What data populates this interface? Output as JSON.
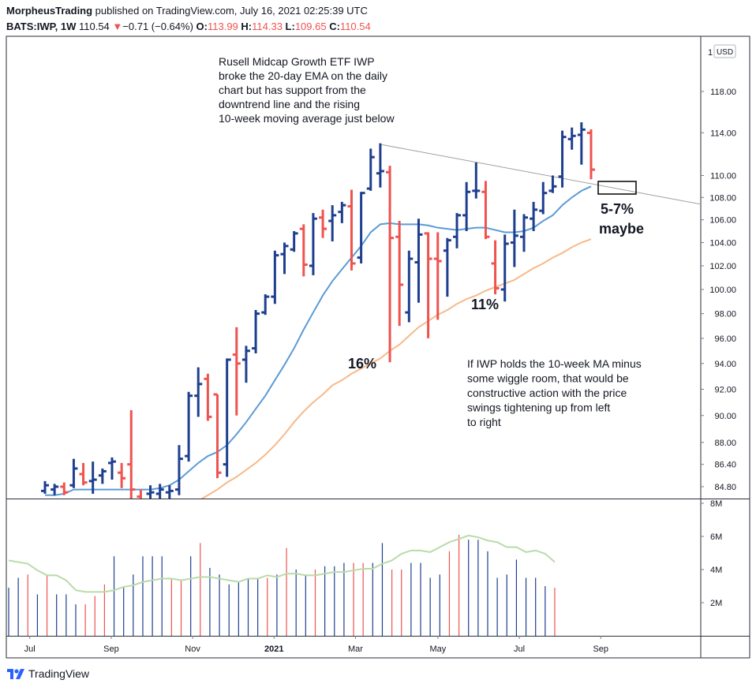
{
  "header": {
    "line1_user": "MorpheusTrading",
    "line1_rest": " published on TradingView.com, July 16, 2021 02:25:39 UTC",
    "symbol": "BATS:IWP, 1W",
    "price": "110.54",
    "arrow": "▼",
    "change": "−0.71 (−0.64%)",
    "o_label": "O:",
    "o_value": "113.99",
    "h_label": "H:",
    "h_value": "114.33",
    "l_label": "L:",
    "l_value": "109.65",
    "c_label": "C:",
    "c_value": "110.54"
  },
  "footer": {
    "logo_text": "TradingView"
  },
  "colors": {
    "up": "#1e3f8f",
    "down": "#ef5350",
    "ema10": "#5b9bd5",
    "ma40": "#f7b98a",
    "vol_ma": "#b9dba8",
    "trendline": "#a0a0a0"
  },
  "chart_data": {
    "type": "ohlc",
    "y_scale": "log",
    "y_unit_label": "USD",
    "price_axis_ticks": [
      "118.00",
      "114.00",
      "110.00",
      "108.00",
      "106.00",
      "104.00",
      "102.00",
      "100.00",
      "98.00",
      "96.00",
      "94.00",
      "92.00",
      "90.00",
      "88.00",
      "86.40",
      "84.80"
    ],
    "volume_axis_ticks": [
      "8M",
      "6M",
      "4M",
      "2M"
    ],
    "x_axis_labels": [
      "Jul",
      "Sep",
      "Nov",
      "2021",
      "Mar",
      "May",
      "Jul",
      "Sep"
    ],
    "annotations": {
      "top_note": [
        "Rusell Midcap Growth ETF IWP",
        "broke the 20-day EMA on the daily",
        "chart but has support from the",
        "downtrend line and the rising",
        "10-week moving average just below"
      ],
      "bottom_note": [
        "If IWP holds the 10-week MA minus",
        "some wiggle room, that would be",
        "constructive action with the price",
        "swings tightening up from left",
        "to right"
      ],
      "pct_16": "16%",
      "pct_11": "11%",
      "target_1": "5-7%",
      "target_2": "maybe"
    },
    "bars": [
      [
        84.5,
        85.2,
        84.3,
        84.9,
        2.9
      ],
      [
        84.6,
        85.0,
        84.2,
        84.8,
        3.5
      ],
      [
        84.8,
        85.1,
        84.2,
        84.4,
        3.7
      ],
      [
        84.9,
        86.8,
        84.7,
        86.1,
        2.5
      ],
      [
        85.7,
        86.5,
        84.9,
        85.1,
        3.7
      ],
      [
        85.2,
        86.6,
        84.3,
        85.3,
        2.5
      ],
      [
        85.6,
        86.1,
        85.0,
        85.9,
        2.5
      ],
      [
        86.5,
        86.9,
        85.3,
        86.6,
        1.9
      ],
      [
        85.8,
        86.5,
        84.7,
        85.4,
        1.9
      ],
      [
        86.4,
        90.4,
        83.8,
        84.6,
        2.4
      ],
      [
        84.1,
        84.6,
        82.6,
        83.2,
        3.1
      ],
      [
        84.3,
        84.9,
        83.6,
        84.4,
        4.8
      ],
      [
        84.3,
        85.0,
        83.9,
        84.6,
        2.9
      ],
      [
        84.4,
        84.9,
        83.0,
        84.5,
        3.7
      ],
      [
        84.6,
        87.8,
        84.2,
        86.8,
        4.8
      ],
      [
        87.0,
        91.8,
        86.6,
        91.5,
        4.8
      ],
      [
        91.5,
        93.7,
        89.9,
        92.4,
        4.8
      ],
      [
        92.8,
        93.2,
        89.6,
        89.9,
        3.4
      ],
      [
        91.6,
        91.6,
        85.4,
        85.8,
        3.4
      ],
      [
        86.4,
        94.4,
        85.5,
        94.3,
        4.8
      ],
      [
        94.7,
        96.9,
        90.0,
        94.0,
        5.6
      ],
      [
        94.3,
        95.4,
        92.5,
        95.0,
        4.1
      ],
      [
        95.2,
        98.3,
        94.8,
        98.0,
        3.7
      ],
      [
        98.1,
        99.6,
        97.9,
        99.4,
        3.1
      ],
      [
        99.4,
        103.3,
        98.8,
        102.9,
        3.3
      ],
      [
        103.0,
        104.0,
        101.3,
        103.7,
        3.5
      ],
      [
        103.4,
        105.0,
        103.2,
        104.8,
        3.5
      ],
      [
        105.2,
        105.6,
        101.1,
        102.1,
        3.5
      ],
      [
        102.0,
        106.6,
        101.2,
        106.1,
        3.7
      ],
      [
        106.2,
        106.9,
        104.4,
        105.2,
        5.3
      ],
      [
        105.9,
        107.3,
        104.1,
        106.4,
        4.0
      ],
      [
        106.7,
        107.6,
        105.7,
        107.3,
        3.7
      ],
      [
        107.2,
        108.7,
        101.6,
        102.2,
        4.0
      ],
      [
        102.7,
        108.5,
        102.2,
        108.4,
        4.2
      ],
      [
        108.8,
        112.5,
        108.6,
        111.7,
        4.2
      ],
      [
        110.2,
        113.0,
        108.9,
        110.4,
        4.4
      ],
      [
        110.3,
        110.9,
        94.1,
        104.4,
        4.4
      ],
      [
        104.5,
        105.9,
        97.0,
        100.4,
        4.4
      ],
      [
        98.1,
        103.3,
        97.3,
        102.6,
        4.4
      ],
      [
        102.3,
        106.1,
        98.9,
        104.7,
        5.6
      ],
      [
        104.8,
        104.9,
        96.0,
        102.6,
        4.0
      ],
      [
        102.6,
        104.9,
        97.5,
        102.4,
        4.0
      ],
      [
        103.3,
        104.4,
        99.4,
        104.2,
        4.4
      ],
      [
        104.5,
        106.6,
        103.5,
        106.4,
        4.4
      ],
      [
        106.4,
        109.4,
        105.0,
        108.5,
        3.5
      ],
      [
        108.6,
        111.2,
        107.9,
        108.6,
        3.7
      ],
      [
        108.5,
        109.5,
        104.3,
        104.5,
        5.1
      ],
      [
        102.2,
        104.2,
        99.6,
        100.1,
        6.1
      ],
      [
        100.0,
        104.7,
        99.0,
        103.9,
        5.8
      ],
      [
        104.0,
        106.9,
        101.9,
        104.6,
        5.8
      ],
      [
        104.5,
        106.5,
        103.2,
        106.2,
        5.1
      ],
      [
        106.1,
        107.6,
        105.0,
        106.9,
        3.5
      ],
      [
        106.8,
        109.4,
        106.5,
        108.4,
        3.7
      ],
      [
        108.6,
        110.0,
        108.4,
        109.0,
        4.6
      ],
      [
        109.9,
        114.2,
        108.9,
        113.6,
        3.5
      ],
      [
        113.4,
        114.5,
        112.4,
        113.7,
        3.5
      ],
      [
        113.8,
        115.0,
        111.0,
        114.3,
        3.0
      ],
      [
        113.99,
        114.33,
        109.65,
        110.54,
        2.9
      ]
    ],
    "ema10_weekly": [
      84.2,
      84.2,
      84.3,
      84.6,
      84.6,
      84.6,
      84.6,
      84.6,
      84.6,
      84.6,
      84.6,
      84.6,
      84.7,
      84.9,
      85.3,
      85.9,
      86.5,
      87.0,
      87.3,
      87.8,
      88.6,
      89.5,
      90.5,
      91.5,
      92.7,
      93.9,
      95.2,
      96.7,
      98.1,
      99.5,
      100.7,
      101.7,
      102.7,
      103.7,
      104.9,
      105.6,
      105.7,
      105.6,
      105.6,
      105.6,
      105.5,
      105.3,
      105.2,
      105.1,
      105.2,
      105.3,
      105.3,
      105.1,
      104.9,
      104.9,
      105.0,
      105.3,
      105.9,
      106.4,
      107.3,
      108.0,
      108.6,
      109.0
    ],
    "ma40_weekly": [
      76.8,
      77.3,
      77.7,
      78.2,
      78.6,
      79.0,
      79.5,
      79.9,
      80.3,
      80.8,
      81.2,
      81.6,
      82.0,
      82.5,
      82.9,
      83.3,
      83.8,
      84.2,
      84.6,
      85.1,
      85.5,
      86.0,
      86.5,
      87.1,
      87.8,
      88.6,
      89.5,
      90.3,
      91.0,
      91.6,
      92.3,
      92.7,
      93.2,
      93.6,
      94.0,
      94.4,
      95.0,
      95.5,
      96.2,
      96.9,
      97.4,
      97.9,
      98.3,
      98.8,
      99.2,
      99.5,
      99.9,
      100.2,
      100.5,
      100.8,
      101.3,
      101.8,
      102.2,
      102.7,
      103.1,
      103.6,
      104.0,
      104.3
    ],
    "volume_ma": [
      4.55,
      4.45,
      4.35,
      3.95,
      3.65,
      3.65,
      3.35,
      2.75,
      2.65,
      2.65,
      2.65,
      2.75,
      2.95,
      3.05,
      3.25,
      3.35,
      3.45,
      3.45,
      3.35,
      3.45,
      3.55,
      3.55,
      3.45,
      3.35,
      3.25,
      3.45,
      3.45,
      3.65,
      3.55,
      3.75,
      3.75,
      3.65,
      3.65,
      3.75,
      3.85,
      3.85,
      3.95,
      4.05,
      4.05,
      4.35,
      4.55,
      4.95,
      5.15,
      5.15,
      5.05,
      5.35,
      5.65,
      5.85,
      6.05,
      5.95,
      5.75,
      5.65,
      5.35,
      5.35,
      5.05,
      5.15,
      4.95,
      4.45
    ],
    "trendline": {
      "from": [
        35,
        112.9
      ],
      "to": [
        69,
        107.3
      ]
    },
    "x_axis_label_weeks": [
      0.8,
      9.3,
      17.8,
      26.3,
      34.8,
      43.4,
      51.9,
      60.4
    ]
  }
}
